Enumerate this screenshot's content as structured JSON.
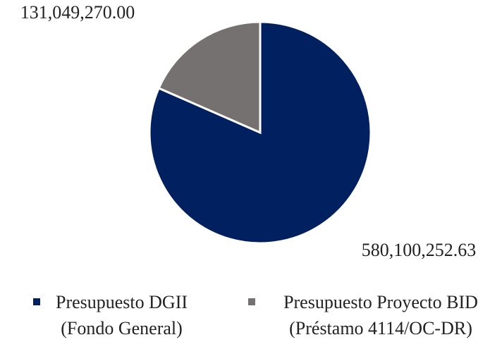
{
  "chart_data": {
    "type": "pie",
    "categories": [
      "Presupuesto DGII (Fondo General)",
      "Presupuesto Proyecto BID (Préstamo 4114/OC-DR)"
    ],
    "values": [
      580100252.63,
      131049270.0
    ],
    "value_labels": [
      "580,100,252.63",
      "131,049,270.00"
    ],
    "colors": [
      "#002060",
      "#767171"
    ],
    "legend": "bottom"
  }
}
